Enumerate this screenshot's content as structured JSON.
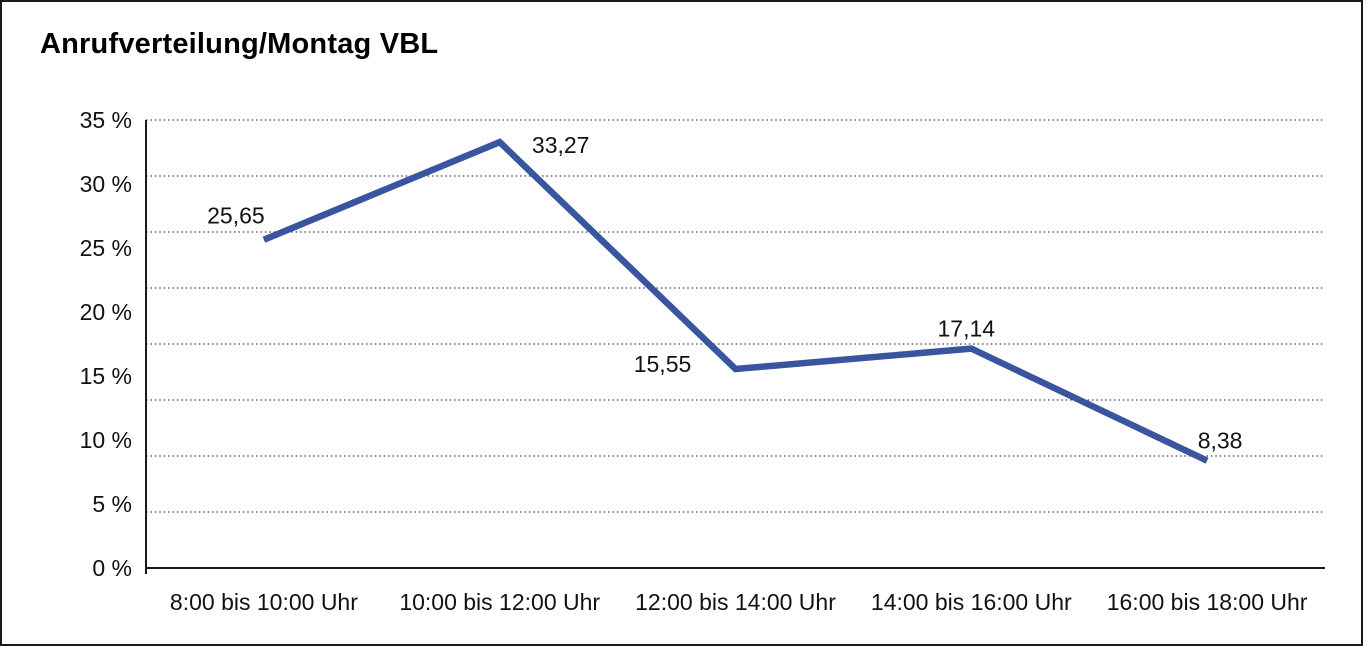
{
  "title": "Anrufverteilung/Montag VBL",
  "chart_data": {
    "type": "line",
    "title": "Anrufverteilung/Montag VBL",
    "categories": [
      "8:00 bis 10:00 Uhr",
      "10:00 bis 12:00 Uhr",
      "12:00 bis 14:00 Uhr",
      "14:00 bis 16:00 Uhr",
      "16:00 bis 18:00 Uhr"
    ],
    "values": [
      25.65,
      33.27,
      15.55,
      17.14,
      8.38
    ],
    "point_labels": [
      "25,65",
      "33,27",
      "15,55",
      "17,14",
      "8,38"
    ],
    "xlabel": "",
    "ylabel": "",
    "ylim": [
      0,
      35
    ],
    "ytick_step": 5,
    "ytick_labels": [
      "0 %",
      "5 %",
      "10 %",
      "15 %",
      "20 %",
      "25 %",
      "30 %",
      "35 %"
    ],
    "grid": "horizontal dotted, 8 equal divisions",
    "legend": "none",
    "line_color": "#3A55A0",
    "axis_color": "#1a1a1a",
    "grid_color": "#4a4a4a",
    "text_color": "#111111",
    "background": "#ffffff"
  }
}
